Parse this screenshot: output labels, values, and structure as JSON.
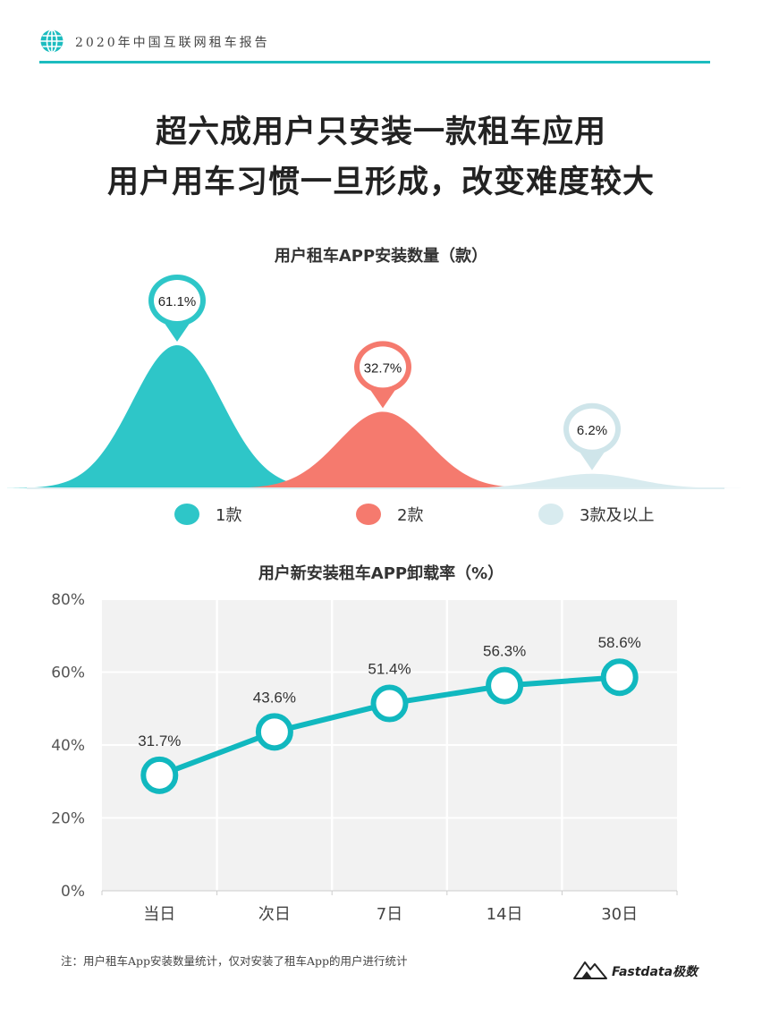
{
  "header": {
    "title": "2020年中国互联网租车报告"
  },
  "headline": {
    "line1": "超六成用户只安装一款租车应用",
    "line2": "用户用车习惯一旦形成，改变难度较大"
  },
  "chart_data": [
    {
      "type": "area",
      "title": "用户租车APP安装数量（款）",
      "categories": [
        "1款",
        "2款",
        "3款及以上"
      ],
      "values": [
        61.1,
        32.7,
        6.2
      ],
      "value_labels": [
        "61.1%",
        "32.7%",
        "6.2%"
      ],
      "legend": [
        "1款",
        "2款",
        "3款及以上"
      ],
      "legend_position": "bottom",
      "colors": [
        "#2ec6c8",
        "#f57a6e",
        "#d8ebef"
      ]
    },
    {
      "type": "line",
      "title": "用户新安装租车APP卸载率（%）",
      "categories": [
        "当日",
        "次日",
        "7日",
        "14日",
        "30日"
      ],
      "values": [
        31.7,
        43.6,
        51.4,
        56.3,
        58.6
      ],
      "value_labels": [
        "31.7%",
        "43.6%",
        "51.4%",
        "56.3%",
        "58.6%"
      ],
      "yticks": [
        "0%",
        "20%",
        "40%",
        "60%",
        "80%"
      ],
      "ylim": [
        0,
        80
      ],
      "grid": true,
      "color": "#11b8bf"
    }
  ],
  "footnote": "注：用户租车App安装数量统计，仅对安装了租车App的用户进行统计",
  "brand": {
    "name": "Fastdata极数"
  }
}
